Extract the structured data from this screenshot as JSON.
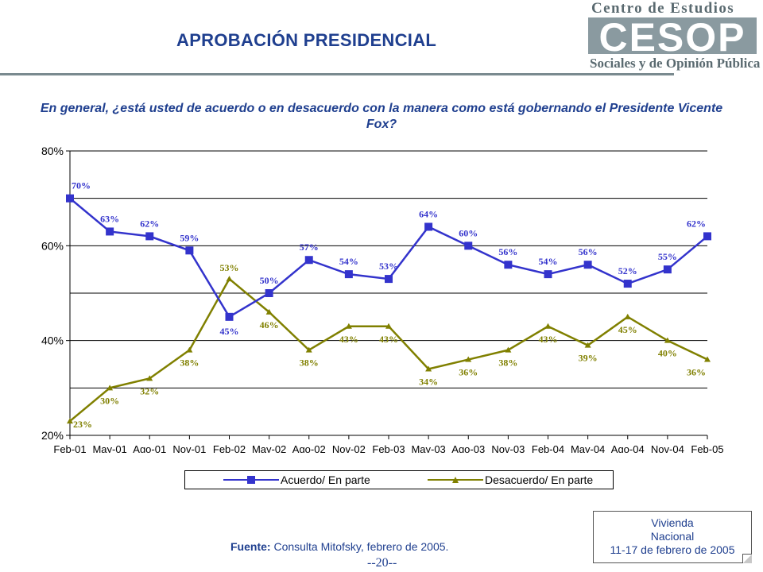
{
  "header": {
    "title": "APROBACIÓN PRESIDENCIAL"
  },
  "logo": {
    "line_top": "Centro de Estudios",
    "acronym": "CESOP",
    "line_bottom": "Sociales y de Opinión Pública"
  },
  "question": "En general, ¿está usted de acuerdo o en desacuerdo con la manera como está gobernando el Presidente Vicente Fox?",
  "legend": {
    "series1": "Acuerdo/ En parte",
    "series2": "Desacuerdo/ En parte"
  },
  "source": {
    "label": "Fuente:",
    "text": " Consulta Mitofsky, febrero de 2005."
  },
  "page_number": "--20--",
  "note": {
    "line1": "Vivienda",
    "line2": "Nacional",
    "line3": "11-17 de febrero de 2005"
  },
  "colors": {
    "series1": "#3333cc",
    "series2": "#808000",
    "title": "#1f3f8f"
  },
  "chart_data": {
    "type": "line",
    "title": "",
    "xlabel": "",
    "ylabel": "",
    "ylim": [
      20,
      80
    ],
    "y_ticks": [
      "20%",
      "40%",
      "60%",
      "80%"
    ],
    "grid": "horizontal",
    "legend_position": "bottom",
    "categories": [
      "Feb-01",
      "May-01",
      "Ago-01",
      "Nov-01",
      "Feb-02",
      "May-02",
      "Ago-02",
      "Nov-02",
      "Feb-03",
      "May-03",
      "Ago-03",
      "Nov-03",
      "Feb-04",
      "May-04",
      "Ago-04",
      "Nov-04",
      "Feb-05"
    ],
    "series": [
      {
        "name": "Acuerdo/ En parte",
        "values": [
          70,
          63,
          62,
          59,
          45,
          50,
          57,
          54,
          53,
          64,
          60,
          56,
          54,
          56,
          52,
          55,
          62
        ],
        "labels": [
          "70%",
          "63%",
          "62%",
          "59%",
          "45%",
          "50%",
          "57%",
          "54%",
          "53%",
          "64%",
          "60%",
          "56%",
          "54%",
          "56%",
          "52%",
          "55%",
          "62%"
        ]
      },
      {
        "name": "Desacuerdo/ En parte",
        "values": [
          23,
          30,
          32,
          38,
          53,
          46,
          38,
          43,
          43,
          34,
          36,
          38,
          43,
          39,
          45,
          40,
          36
        ],
        "labels": [
          "23%",
          "30%",
          "32%",
          "38%",
          "53%",
          "46%",
          "38%",
          "43%",
          "43%",
          "34%",
          "36%",
          "38%",
          "43%",
          "39%",
          "45%",
          "40%",
          "36%"
        ]
      }
    ]
  }
}
